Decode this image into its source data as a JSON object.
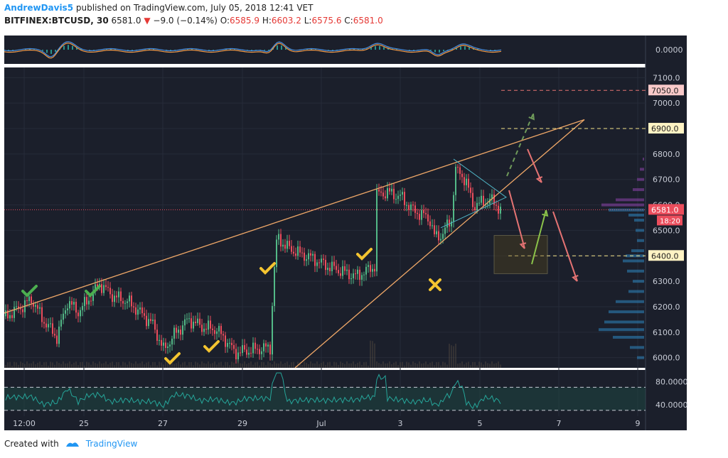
{
  "header": {
    "author": "AndrewDavis5",
    "published": "published on TradingView.com, July 05, 2018 12:41 VET",
    "symbol": "BITFINEX:BTCUSD, 30",
    "last": "6581.0",
    "change": "−9.0 (−0.14%)",
    "o_label": "O:",
    "o_value": "6585.9",
    "h_label": "H:",
    "h_value": "6603.2",
    "l_label": "L:",
    "l_value": "6575.6",
    "c_label": "C:",
    "c_value": "6581.0"
  },
  "footer": {
    "created_with": "Created with",
    "brand": "TradingView"
  },
  "colors": {
    "background": "#1b1f2b",
    "grid": "#262b38",
    "candle_up": "#53b987",
    "candle_down": "#eb4d5c",
    "trendline": "#f0a868",
    "wedge": "#4fb3c4",
    "level_red": "#e57373",
    "level_yellow": "#f5e38a",
    "last_price": "#eb4d5c",
    "check_green": "#4caf50",
    "check_yellow": "#f4c430",
    "arrow_red": "#e57373",
    "arrow_green": "#8bc34a",
    "rsi": "#26a69a"
  },
  "chart_data": {
    "type": "candlestick",
    "x_tick_labels": [
      "12:00",
      "25",
      "27",
      "29",
      "Jul",
      "3",
      "5",
      "7",
      "9"
    ],
    "y_ticks": [
      6000,
      6100,
      6200,
      6300,
      6400,
      6500,
      6600,
      6700,
      6800,
      6900,
      7000,
      7100
    ],
    "ylim": [
      5960,
      7140
    ],
    "price_labels": [
      {
        "value": 7050,
        "text": "7050.0",
        "style": "red"
      },
      {
        "value": 6900,
        "text": "6900.0",
        "style": "yellow"
      },
      {
        "value": 6581,
        "text": "6581.0",
        "style": "last"
      },
      {
        "value": 6400,
        "text": "6400.0",
        "style": "yellow"
      }
    ],
    "countdown": "18:20",
    "macd_label": "0.0000",
    "rsi_ticks": [
      "80.0000",
      "40.0000"
    ],
    "price_path": [
      [
        0,
        6150
      ],
      [
        25,
        6190
      ],
      [
        45,
        6230
      ],
      [
        60,
        6150
      ],
      [
        80,
        6080
      ],
      [
        95,
        6220
      ],
      [
        110,
        6180
      ],
      [
        125,
        6230
      ],
      [
        140,
        6290
      ],
      [
        160,
        6240
      ],
      [
        180,
        6220
      ],
      [
        200,
        6170
      ],
      [
        215,
        6130
      ],
      [
        230,
        6030
      ],
      [
        245,
        6090
      ],
      [
        265,
        6150
      ],
      [
        285,
        6120
      ],
      [
        305,
        6110
      ],
      [
        320,
        6060
      ],
      [
        330,
        6020
      ],
      [
        380,
        6040
      ],
      [
        385,
        6320
      ],
      [
        390,
        6480
      ],
      [
        400,
        6440
      ],
      [
        420,
        6410
      ],
      [
        440,
        6390
      ],
      [
        460,
        6360
      ],
      [
        480,
        6340
      ],
      [
        500,
        6320
      ],
      [
        515,
        6340
      ],
      [
        527,
        6360
      ],
      [
        530,
        6640
      ],
      [
        545,
        6650
      ],
      [
        565,
        6630
      ],
      [
        580,
        6580
      ],
      [
        595,
        6560
      ],
      [
        605,
        6540
      ],
      [
        612,
        6470
      ],
      [
        620,
        6480
      ],
      [
        635,
        6540
      ],
      [
        640,
        6740
      ],
      [
        655,
        6700
      ],
      [
        665,
        6600
      ],
      [
        680,
        6610
      ],
      [
        690,
        6620
      ],
      [
        705,
        6581
      ]
    ],
    "volume_profile": [
      [
        6780,
        2
      ],
      [
        6740,
        6
      ],
      [
        6700,
        10
      ],
      [
        6660,
        16
      ],
      [
        6620,
        40
      ],
      [
        6600,
        60
      ],
      [
        6580,
        50
      ],
      [
        6560,
        22
      ],
      [
        6540,
        14
      ],
      [
        6500,
        12
      ],
      [
        6460,
        10
      ],
      [
        6420,
        18
      ],
      [
        6400,
        26
      ],
      [
        6380,
        30
      ],
      [
        6340,
        24
      ],
      [
        6300,
        16
      ],
      [
        6260,
        22
      ],
      [
        6220,
        40
      ],
      [
        6180,
        50
      ],
      [
        6140,
        56
      ],
      [
        6110,
        64
      ],
      [
        6080,
        44
      ],
      [
        6040,
        20
      ],
      [
        6000,
        10
      ]
    ]
  }
}
